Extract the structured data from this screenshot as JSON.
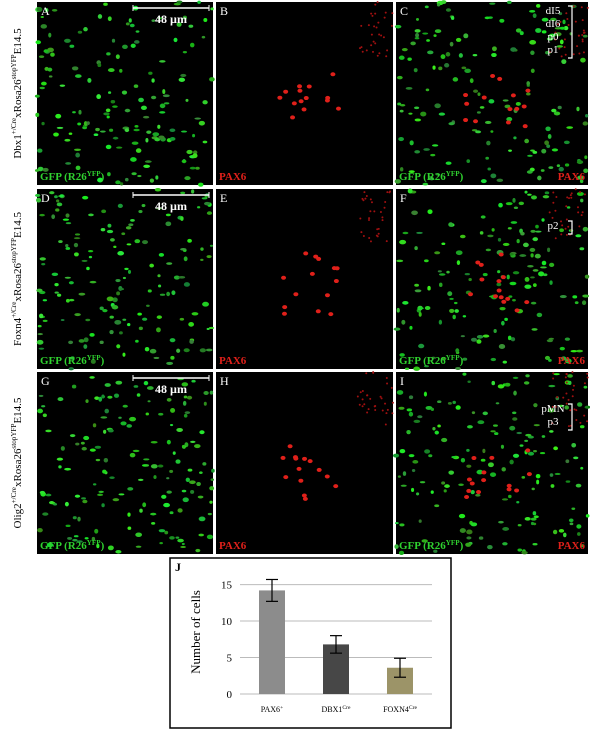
{
  "row_labels": [
    [
      "Dbx1",
      "+/Cre",
      "xRosa26",
      "stopYFP",
      "E14.5"
    ],
    [
      "Foxn4",
      "+/Cre",
      "xRosa26",
      "stopYFP",
      "E14.5"
    ],
    [
      "Olig2",
      "+/Cre",
      "xRosa26",
      "stopYFP",
      "E14.5"
    ]
  ],
  "panels": [
    {
      "letter": "A",
      "scale_bar": "48 µm",
      "green_label": [
        "GFP (R26",
        "YFP",
        ")"
      ]
    },
    {
      "letter": "B",
      "red_label": "PAX6"
    },
    {
      "letter": "C",
      "green_label": [
        "GFP (R26",
        "YFP",
        ")"
      ],
      "red_label": "PAX6",
      "annotations": [
        "dI5",
        "dI6",
        "p0",
        "p1"
      ]
    },
    {
      "letter": "D",
      "scale_bar": "48 µm",
      "green_label": [
        "GFP (R26",
        "YFP",
        ")"
      ]
    },
    {
      "letter": "E",
      "red_label": "PAX6"
    },
    {
      "letter": "F",
      "green_label": [
        "GFP (R26",
        "YFP",
        ")"
      ],
      "red_label": "PAX6",
      "annotations": [
        "p2"
      ]
    },
    {
      "letter": "G",
      "scale_bar": "48 µm",
      "green_label": [
        "GFP (R26",
        "YFP",
        ")"
      ]
    },
    {
      "letter": "H",
      "red_label": "PAX6"
    },
    {
      "letter": "I",
      "green_label": [
        "GFP (R26",
        "YFP",
        ")"
      ],
      "red_label": "PAX6",
      "annotations": [
        "pMN",
        "p3"
      ]
    }
  ],
  "chart_data": {
    "type": "bar",
    "title": "J",
    "y_label": "Number of cells",
    "categories": [
      "PAX6",
      "DBX1",
      "FOXN4"
    ],
    "category_superscripts": [
      "+",
      "Cre",
      "Cre"
    ],
    "values": [
      14.2,
      6.8,
      3.6
    ],
    "errors": [
      1.5,
      1.2,
      1.3
    ],
    "colors": [
      "#8c8c8c",
      "#474747",
      "#9c9468"
    ],
    "ylim": [
      0,
      17
    ],
    "yticks": [
      0,
      5,
      10,
      15
    ],
    "grid": true
  }
}
